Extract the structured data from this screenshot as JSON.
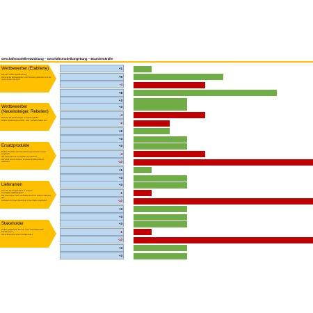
{
  "title": "Geschäftsmodellentwicklung – Geschäftsmodellumgebung – Branchenkräfte",
  "colors": {
    "accent": "#ffc000",
    "positive": "#70ad47",
    "negative": "#c00000",
    "cell": "#bdd7ee"
  },
  "sections": [
    {
      "name": "Wettbewerber (Etablierte)",
      "questions": [
        "Wer sind unsere Wettbewerber?",
        "Wie sind die Wettbewerber in der Branche positioniert und wie unterscheiden sie sich?"
      ]
    },
    {
      "name": "Wettbewerber (Neueinsteiger, Rebellen)",
      "questions": [
        "Wer sind die Neueinsteiger in unserem Markt?",
        "Welche Wettbewerbsvorteile - oder -nachteile haben sie?"
      ]
    },
    {
      "name": "Ersatzprodukte",
      "questions": [
        "Welche Produkte oder Dienstleistungen könnten unsere ersetzen?",
        "Wie viel kosten sie im Vergleich zu unseren?",
        "Wie leicht können Kunden zu diesen Ersatzprodukten wechseln?"
      ]
    },
    {
      "name": "Lieferanten",
      "questions": [
        "Wer sind die Hauptanbieter in unserem Geschäftsmodellkategorie?",
        "Wie stark hängt unser Geschäftsmodell von anderen Akteuren ab?",
        "Inwieweit sind neue Teilnehmer in den Markt eingetreten?"
      ]
    },
    {
      "name": "Stakeholder",
      "questions": [
        "Welche Stakeholder könnten unser Geschäftsmodell beeinflussen?",
        "Wie einflussreich sind die Stakeholder?"
      ]
    }
  ],
  "chart_data": {
    "type": "bar",
    "orientation": "horizontal",
    "groups": [
      {
        "section": "Wettbewerber (Etablierte)",
        "values": [
          1,
          5,
          -4,
          8,
          3
        ]
      },
      {
        "section": "Wettbewerber (Neueinsteiger, Rebellen)",
        "values": [
          3,
          -4,
          -2,
          2,
          3
        ]
      },
      {
        "section": "Ersatzprodukte",
        "values": [
          3,
          -4,
          -10,
          1,
          3
        ]
      },
      {
        "section": "Lieferanten",
        "values": [
          3,
          -1,
          -10,
          3,
          3
        ]
      },
      {
        "section": "Stakeholder",
        "values": [
          3,
          -1,
          -10,
          3,
          3
        ]
      }
    ],
    "value_labels": [
      [
        "+1",
        "+5",
        "-4",
        "+8",
        "+3"
      ],
      [
        "+3",
        "-4",
        "-2",
        "+2",
        "+3"
      ],
      [
        "+3",
        "-4",
        "-10",
        "+1",
        "+3"
      ],
      [
        "+3",
        "-1",
        "-10",
        "+3",
        "+3"
      ],
      [
        "+3",
        "-1",
        "-10",
        "+3",
        "+3"
      ]
    ],
    "positive_color": "#70ad47",
    "negative_color": "#c00000"
  }
}
